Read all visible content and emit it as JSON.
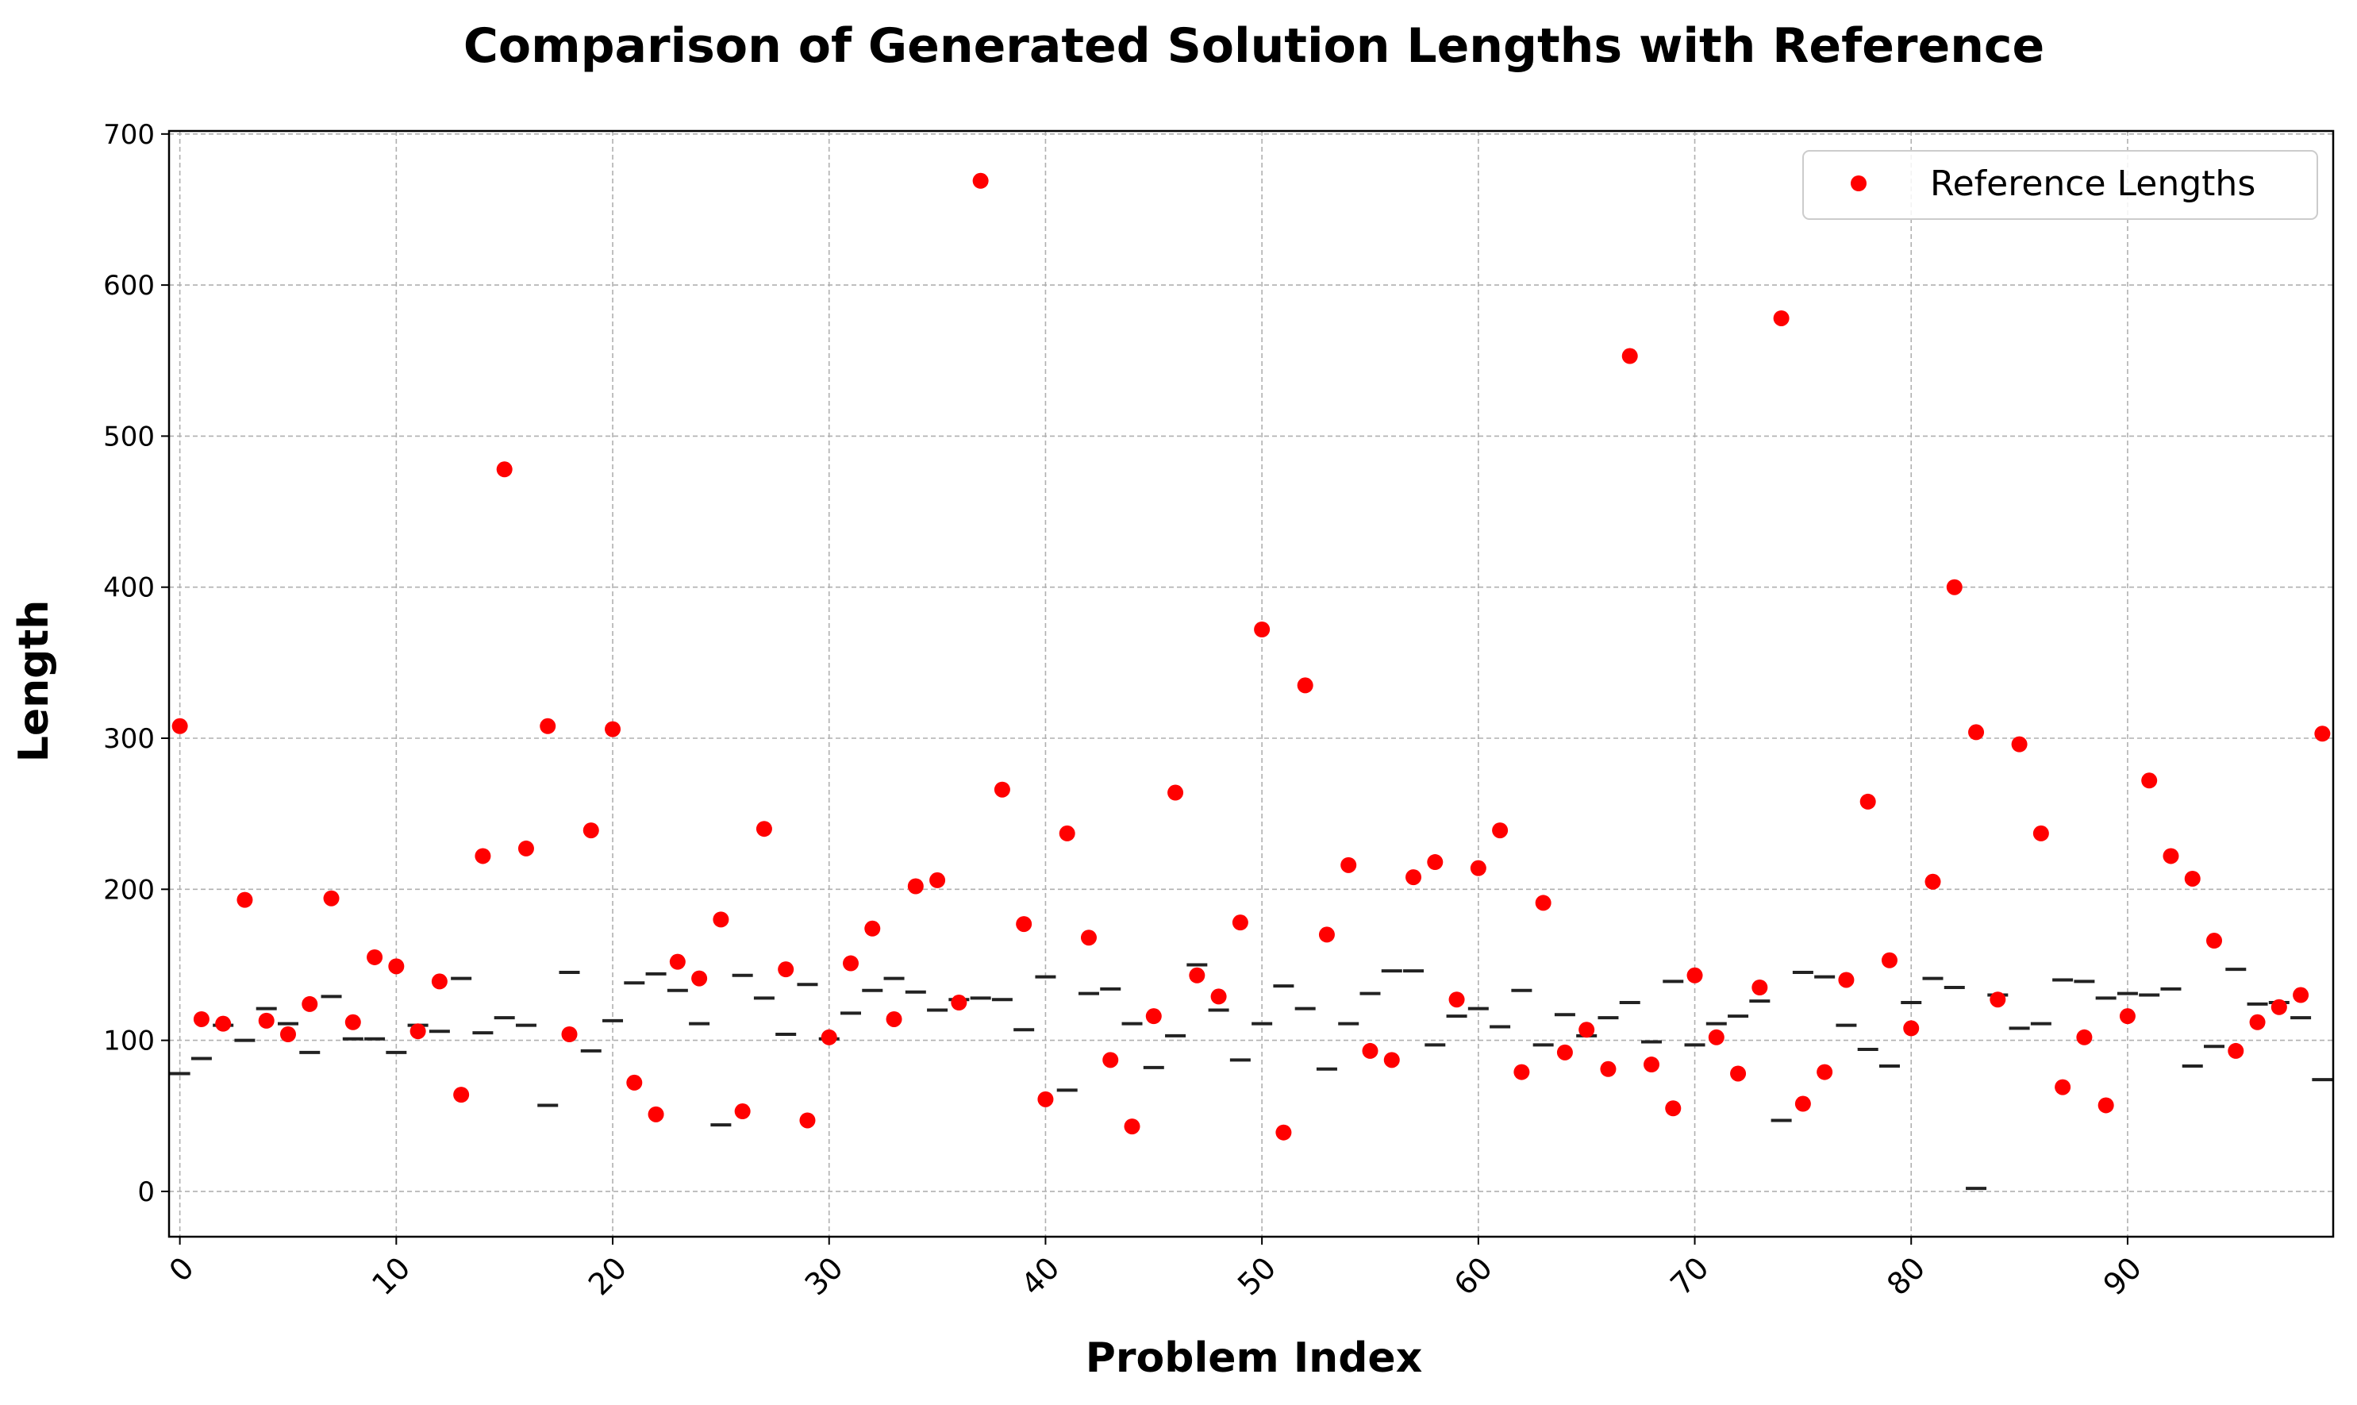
{
  "chart_data": {
    "type": "scatter",
    "title": "Comparison of Generated Solution Lengths with Reference",
    "xlabel": "Problem Index",
    "ylabel": "Length",
    "xlim": [
      -0.5,
      99.5
    ],
    "ylim": [
      -30,
      702
    ],
    "xticks": [
      0,
      10,
      20,
      30,
      40,
      50,
      60,
      70,
      80,
      90
    ],
    "yticks": [
      0,
      100,
      200,
      300,
      400,
      500,
      600,
      700
    ],
    "grid": true,
    "legend": {
      "position": "top-right",
      "entries": [
        "Reference Lengths"
      ]
    },
    "colors": {
      "reference": "#ff0000",
      "generated": "#222222",
      "grid": "#b0b0b0"
    },
    "series": [
      {
        "name": "Reference Lengths",
        "marker": "dot",
        "values": [
          308,
          114,
          111,
          193,
          113,
          104,
          124,
          194,
          112,
          155,
          149,
          106,
          139,
          64,
          222,
          478,
          227,
          308,
          104,
          239,
          306,
          72,
          51,
          152,
          141,
          180,
          53,
          240,
          147,
          47,
          102,
          151,
          174,
          114,
          202,
          206,
          125,
          669,
          266,
          177,
          61,
          237,
          168,
          87,
          43,
          116,
          264,
          143,
          129,
          178,
          372,
          39,
          335,
          170,
          216,
          93,
          87,
          208,
          218,
          127,
          214,
          239,
          79,
          191,
          92,
          107,
          81,
          553,
          84,
          55,
          143,
          102,
          78,
          135,
          578,
          58,
          79,
          140,
          258,
          153,
          108,
          205,
          400,
          304,
          127,
          296,
          237,
          69,
          102,
          57,
          116,
          272,
          222,
          207,
          166,
          93,
          112,
          122,
          130,
          303
        ]
      },
      {
        "marker": "hline",
        "values": [
          78,
          88,
          110,
          100,
          121,
          111,
          92,
          129,
          101,
          101,
          92,
          110,
          106,
          141,
          105,
          115,
          110,
          57,
          145,
          93,
          113,
          138,
          144,
          133,
          111,
          44,
          143,
          128,
          104,
          137,
          101,
          118,
          133,
          141,
          132,
          120,
          127,
          128,
          127,
          107,
          142,
          67,
          131,
          134,
          111,
          82,
          103,
          150,
          120,
          87,
          111,
          136,
          121,
          81,
          111,
          131,
          146,
          146,
          97,
          116,
          121,
          109,
          133,
          97,
          117,
          103,
          115,
          125,
          99,
          139,
          97,
          111,
          116,
          126,
          47,
          145,
          142,
          110,
          94,
          83,
          125,
          141,
          135,
          2,
          130,
          108,
          111,
          140,
          139,
          128,
          131,
          130,
          134,
          83,
          96,
          147,
          124,
          125,
          115,
          74
        ]
      }
    ]
  }
}
